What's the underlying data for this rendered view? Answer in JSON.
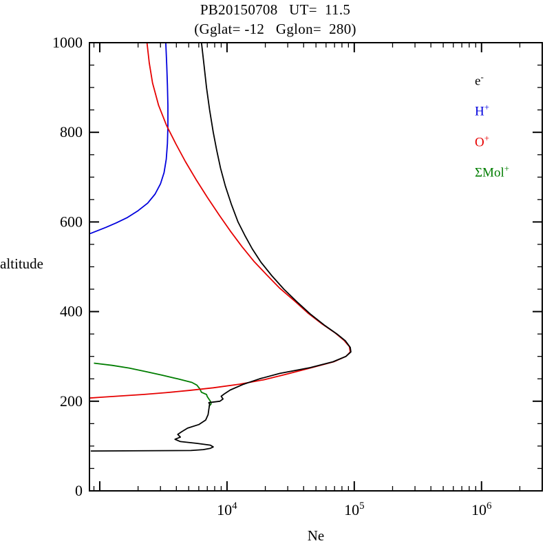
{
  "header": {
    "title": "PB20150708   UT=  11.5",
    "subtitle": "(Gglat= -12   Gglon=  280)"
  },
  "axes": {
    "xlabel": "Ne",
    "ylabel": "altitude"
  },
  "chart_data": {
    "type": "line",
    "title": "PB20150708   UT=  11.5",
    "subtitle": "(Gglat= -12   Gglon=  280)",
    "xlabel": "Ne",
    "ylabel": "altitude",
    "x_scale": "log",
    "xlim": [
      830,
      3000000
    ],
    "ylim": [
      0,
      1000
    ],
    "grid": false,
    "legend_position": "upper-right-inside",
    "x_major_ticks": [
      {
        "value": 10000,
        "base": "10",
        "exp": "4"
      },
      {
        "value": 100000,
        "base": "10",
        "exp": "5"
      },
      {
        "value": 1000000,
        "base": "10",
        "exp": "6"
      }
    ],
    "y_major_ticks": [
      0,
      200,
      400,
      600,
      800,
      1000
    ],
    "y_minor_step": 50,
    "point_format": "[altitude_km, number_density]",
    "series": [
      {
        "name": "electron",
        "label_base": "e",
        "label_sup": "-",
        "color": "#000000",
        "points": [
          [
            89,
            850
          ],
          [
            90,
            5200
          ],
          [
            92,
            6500
          ],
          [
            95,
            7400
          ],
          [
            98,
            7800
          ],
          [
            102,
            7400
          ],
          [
            106,
            5800
          ],
          [
            110,
            4300
          ],
          [
            115,
            3900
          ],
          [
            120,
            4300
          ],
          [
            126,
            4100
          ],
          [
            132,
            4400
          ],
          [
            140,
            4900
          ],
          [
            148,
            6000
          ],
          [
            158,
            6800
          ],
          [
            170,
            7100
          ],
          [
            182,
            7200
          ],
          [
            193,
            7300
          ],
          [
            197,
            7200
          ],
          [
            200,
            8800
          ],
          [
            205,
            9300
          ],
          [
            211,
            9000
          ],
          [
            217,
            9600
          ],
          [
            225,
            10600
          ],
          [
            238,
            13500
          ],
          [
            250,
            18000
          ],
          [
            262,
            26000
          ],
          [
            275,
            45000
          ],
          [
            288,
            68000
          ],
          [
            300,
            86000
          ],
          [
            310,
            94000
          ],
          [
            320,
            93000
          ],
          [
            335,
            85000
          ],
          [
            350,
            73000
          ],
          [
            370,
            58000
          ],
          [
            395,
            45000
          ],
          [
            420,
            36000
          ],
          [
            450,
            28000
          ],
          [
            480,
            22500
          ],
          [
            510,
            18500
          ],
          [
            540,
            15800
          ],
          [
            570,
            13800
          ],
          [
            600,
            12200
          ],
          [
            640,
            10800
          ],
          [
            680,
            9700
          ],
          [
            720,
            8900
          ],
          [
            760,
            8300
          ],
          [
            800,
            7800
          ],
          [
            850,
            7300
          ],
          [
            900,
            6900
          ],
          [
            950,
            6600
          ],
          [
            1000,
            6300
          ]
        ]
      },
      {
        "name": "H+",
        "label_base": "H",
        "label_sup": "+",
        "color": "#0000dd",
        "points": [
          [
            574,
            840
          ],
          [
            580,
            950
          ],
          [
            588,
            1120
          ],
          [
            598,
            1350
          ],
          [
            610,
            1650
          ],
          [
            625,
            2000
          ],
          [
            642,
            2380
          ],
          [
            662,
            2720
          ],
          [
            685,
            3000
          ],
          [
            710,
            3200
          ],
          [
            740,
            3330
          ],
          [
            775,
            3400
          ],
          [
            815,
            3430
          ],
          [
            860,
            3430
          ],
          [
            905,
            3400
          ],
          [
            950,
            3360
          ],
          [
            1000,
            3300
          ]
        ]
      },
      {
        "name": "O+",
        "label_base": "O",
        "label_sup": "+",
        "color": "#e60000",
        "points": [
          [
            207,
            830
          ],
          [
            209,
            1050
          ],
          [
            212,
            1500
          ],
          [
            215,
            2200
          ],
          [
            219,
            3300
          ],
          [
            224,
            5000
          ],
          [
            230,
            7800
          ],
          [
            238,
            12500
          ],
          [
            248,
            19500
          ],
          [
            260,
            29000
          ],
          [
            274,
            45000
          ],
          [
            288,
            69000
          ],
          [
            300,
            86000
          ],
          [
            310,
            93000
          ],
          [
            322,
            91500
          ],
          [
            336,
            83000
          ],
          [
            352,
            71000
          ],
          [
            372,
            56000
          ],
          [
            396,
            43500
          ],
          [
            422,
            34500
          ],
          [
            452,
            26000
          ],
          [
            482,
            20500
          ],
          [
            512,
            16300
          ],
          [
            545,
            13100
          ],
          [
            580,
            10600
          ],
          [
            615,
            8700
          ],
          [
            655,
            7000
          ],
          [
            695,
            5700
          ],
          [
            735,
            4700
          ],
          [
            775,
            3950
          ],
          [
            815,
            3350
          ],
          [
            860,
            2900
          ],
          [
            910,
            2600
          ],
          [
            955,
            2450
          ],
          [
            1000,
            2350
          ]
        ]
      },
      {
        "name": "Mol+",
        "label_base": "ΣMol",
        "label_sup": "+",
        "color": "#007d00",
        "points": [
          [
            188,
            7200
          ],
          [
            194,
            7500
          ],
          [
            200,
            7400
          ],
          [
            205,
            7200
          ],
          [
            210,
            7000
          ],
          [
            215,
            6900
          ],
          [
            220,
            6300
          ],
          [
            228,
            6100
          ],
          [
            236,
            5800
          ],
          [
            242,
            5300
          ],
          [
            250,
            4100
          ],
          [
            258,
            3100
          ],
          [
            266,
            2300
          ],
          [
            274,
            1700
          ],
          [
            280,
            1250
          ],
          [
            285,
            900
          ]
        ]
      }
    ]
  }
}
